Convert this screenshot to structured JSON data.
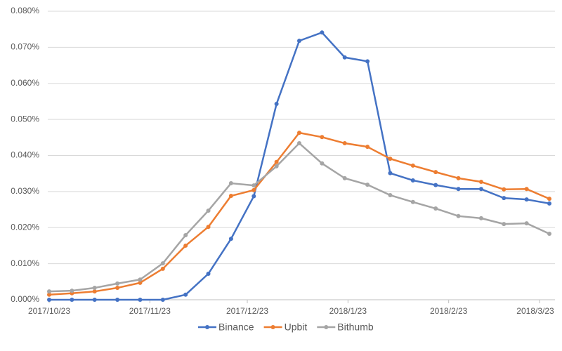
{
  "chart_data": {
    "type": "line",
    "x": [
      "2017/10/23",
      "2017/10/30",
      "2017/11/6",
      "2017/11/13",
      "2017/11/20",
      "2017/11/27",
      "2017/12/4",
      "2017/12/11",
      "2017/12/18",
      "2017/12/25",
      "2018/1/1",
      "2018/1/8",
      "2018/1/15",
      "2018/1/22",
      "2018/1/29",
      "2018/2/5",
      "2018/2/12",
      "2018/2/19",
      "2018/2/26",
      "2018/3/5",
      "2018/3/12",
      "2018/3/19",
      "2018/3/26"
    ],
    "series": [
      {
        "name": "Binance",
        "color": "#4472c4",
        "values": [
          0,
          0,
          0,
          0,
          0,
          0,
          0.0014,
          0.0072,
          0.0169,
          0.0287,
          0.0543,
          0.0718,
          0.0741,
          0.0672,
          0.0661,
          0.0351,
          0.0331,
          0.0318,
          0.0307,
          0.0307,
          0.0282,
          0.0278,
          0.0267
        ]
      },
      {
        "name": "Upbit",
        "color": "#ed7d31",
        "values": [
          0.0014,
          0.0018,
          0.0023,
          0.0033,
          0.0047,
          0.0086,
          0.015,
          0.0202,
          0.0288,
          0.0304,
          0.0382,
          0.0463,
          0.0451,
          0.0434,
          0.0424,
          0.0391,
          0.0372,
          0.0354,
          0.0337,
          0.0327,
          0.0306,
          0.0307,
          0.028
        ]
      },
      {
        "name": "Bithumb",
        "color": "#a5a5a5",
        "values": [
          0.0023,
          0.0025,
          0.0033,
          0.0045,
          0.0056,
          0.0101,
          0.0179,
          0.0247,
          0.0323,
          0.0317,
          0.037,
          0.0434,
          0.0378,
          0.0337,
          0.0319,
          0.029,
          0.0271,
          0.0253,
          0.0232,
          0.0226,
          0.021,
          0.0212,
          0.0183
        ]
      }
    ],
    "xlim": [
      "2017/10/23",
      "2018/3/26"
    ],
    "xticks": [
      "2017/10/23",
      "2017/11/23",
      "2017/12/23",
      "2018/1/23",
      "2018/2/23",
      "2018/3/23"
    ],
    "ylim": [
      0,
      0.08
    ],
    "yticks": [
      {
        "value": 0,
        "label": "0.000%"
      },
      {
        "value": 0.01,
        "label": "0.010%"
      },
      {
        "value": 0.02,
        "label": "0.020%"
      },
      {
        "value": 0.03,
        "label": "0.030%"
      },
      {
        "value": 0.04,
        "label": "0.040%"
      },
      {
        "value": 0.05,
        "label": "0.050%"
      },
      {
        "value": 0.06,
        "label": "0.060%"
      },
      {
        "value": 0.07,
        "label": "0.070%"
      },
      {
        "value": 0.08,
        "label": "0.080%"
      }
    ],
    "grid": true,
    "legend": "bottom"
  }
}
